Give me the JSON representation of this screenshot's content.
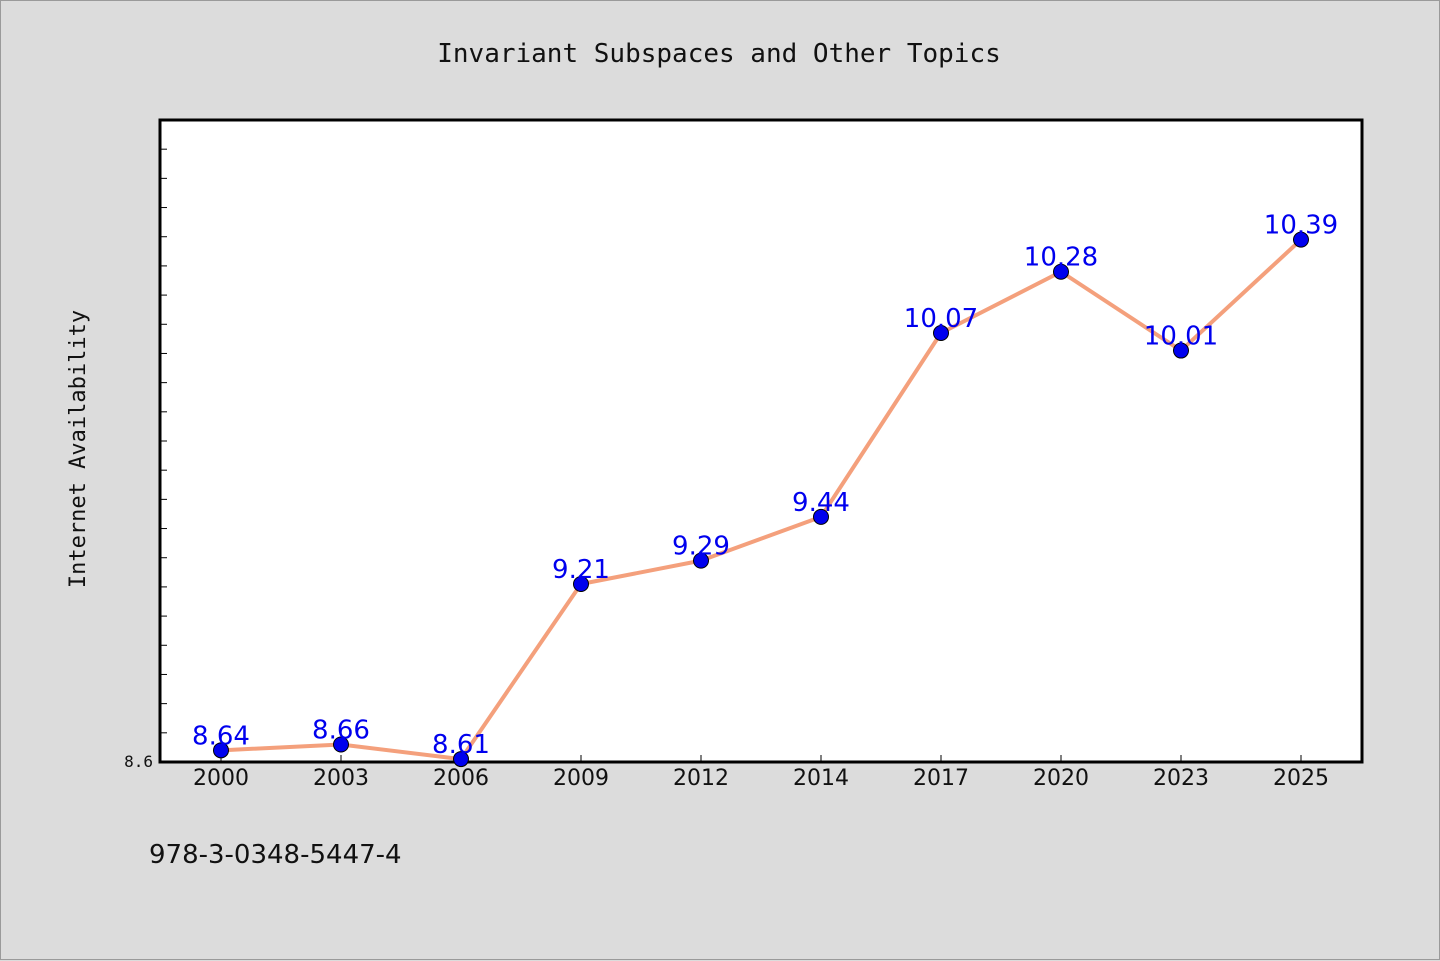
{
  "chart_data": {
    "type": "line",
    "title": "Invariant Subspaces and Other Topics",
    "xlabel": "",
    "ylabel": "Internet Availability",
    "categories": [
      "2000",
      "2003",
      "2006",
      "2009",
      "2012",
      "2014",
      "2017",
      "2020",
      "2023",
      "2025"
    ],
    "series": [
      {
        "values": [
          8.64,
          8.66,
          8.61,
          9.21,
          9.29,
          9.44,
          10.07,
          10.28,
          10.01,
          10.39
        ]
      }
    ],
    "data_labels": [
      "8.64",
      "8.66",
      "8.61",
      "9.21",
      "9.29",
      "9.44",
      "10.07",
      "10.28",
      "10.01",
      "10.39"
    ],
    "y_tick_labels": [
      "8.6"
    ],
    "ylim": [
      8.6,
      10.8
    ],
    "grid": false,
    "line_color": "#f4a07c",
    "marker_color": "#0000ee",
    "label_color": "#0000ee",
    "background_color": "#dcdcdc",
    "plot_background": "#ffffff"
  },
  "footer": {
    "isbn": "978-3-0348-5447-4"
  }
}
